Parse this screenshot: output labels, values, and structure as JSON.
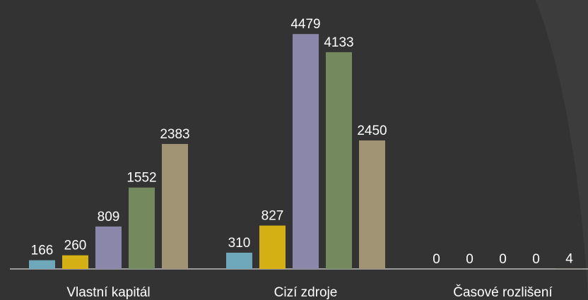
{
  "chart_data": {
    "type": "bar",
    "categories": [
      "Vlastní kapitál",
      "Cizí zdroje",
      "Časové rozlišení"
    ],
    "series": [
      {
        "color": "#6fa8bb",
        "values": [
          166,
          310,
          0
        ]
      },
      {
        "color": "#d4b014",
        "values": [
          260,
          827,
          0
        ]
      },
      {
        "color": "#8b87aa",
        "values": [
          809,
          4479,
          0
        ]
      },
      {
        "color": "#748a5e",
        "values": [
          1552,
          4133,
          0
        ]
      },
      {
        "color": "#a09474",
        "values": [
          2383,
          2450,
          4
        ]
      }
    ],
    "ylim": [
      0,
      5000
    ]
  }
}
